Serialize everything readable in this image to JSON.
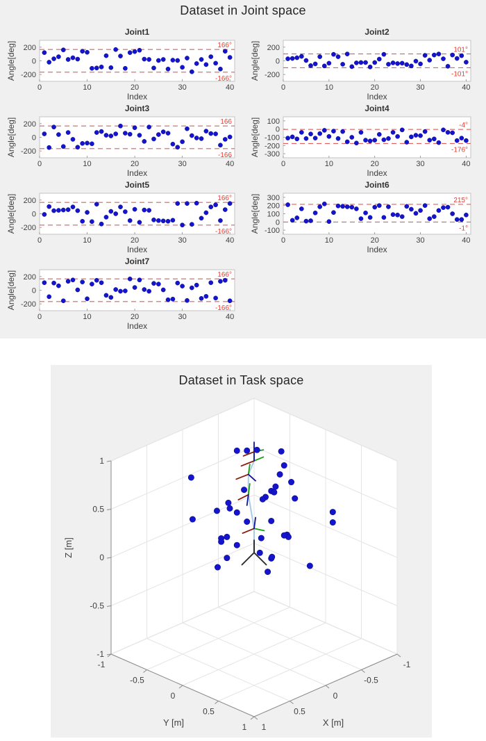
{
  "chart_data": [
    {
      "type": "scatter",
      "title": "Dataset in Joint space",
      "xlabel": "Index",
      "ylabel": "Angle[deg]",
      "xticks": [
        0,
        10,
        20,
        30,
        40
      ],
      "xlim": [
        0,
        41
      ],
      "marker_color": "#1414cc",
      "limit_line_color": "#dd5f5f",
      "limit_text_color": "#ee3a2d",
      "subplots": [
        {
          "title": "Joint1",
          "yticks": [
            200,
            0,
            -200
          ],
          "ylim": [
            -300,
            300
          ],
          "upper_limit": 166,
          "lower_limit": -166,
          "upper_label": "166°",
          "lower_label": "-166°",
          "values": [
            120,
            -20,
            30,
            60,
            160,
            20,
            45,
            25,
            140,
            125,
            -110,
            -105,
            -90,
            75,
            -100,
            165,
            70,
            -110,
            120,
            135,
            155,
            25,
            20,
            -105,
            5,
            20,
            -120,
            10,
            5,
            -95,
            40,
            -160,
            -40,
            20,
            -55,
            60,
            -35,
            -120,
            140,
            50
          ]
        },
        {
          "title": "Joint2",
          "yticks": [
            200,
            0,
            -200
          ],
          "ylim": [
            -300,
            300
          ],
          "upper_limit": 101,
          "lower_limit": -101,
          "upper_label": "101°",
          "lower_label": "-101°",
          "values": [
            30,
            35,
            45,
            65,
            5,
            -70,
            -45,
            60,
            -75,
            -35,
            95,
            60,
            -50,
            100,
            -85,
            -30,
            -25,
            -25,
            -90,
            -25,
            25,
            95,
            -50,
            -30,
            -40,
            -35,
            -55,
            -75,
            -5,
            -45,
            80,
            10,
            85,
            100,
            30,
            -80,
            85,
            35,
            75,
            -20
          ]
        },
        {
          "title": "Joint3",
          "yticks": [
            200,
            0,
            -200
          ],
          "ylim": [
            -300,
            300
          ],
          "upper_limit": 166,
          "lower_limit": -166,
          "upper_label": "166",
          "lower_label": "-166",
          "values": [
            50,
            -150,
            150,
            40,
            -135,
            70,
            -30,
            -145,
            -90,
            -85,
            -95,
            70,
            85,
            30,
            20,
            50,
            165,
            60,
            45,
            140,
            30,
            -60,
            150,
            -25,
            40,
            80,
            60,
            -100,
            -145,
            -65,
            125,
            25,
            -10,
            -20,
            90,
            55,
            50,
            -115,
            -30,
            5
          ]
        },
        {
          "title": "Joint4",
          "yticks": [
            100,
            0,
            -100,
            -200,
            -300
          ],
          "ylim": [
            -350,
            150
          ],
          "upper_limit": -4,
          "lower_limit": -176,
          "upper_label": "-4°",
          "lower_label": "-176°",
          "values": [
            -110,
            -95,
            -120,
            -40,
            -115,
            -60,
            -110,
            -55,
            -15,
            -90,
            -25,
            -115,
            -30,
            -155,
            -100,
            -170,
            -40,
            -135,
            -145,
            -135,
            -65,
            -130,
            -115,
            -40,
            -90,
            -10,
            -160,
            -95,
            -75,
            -80,
            -30,
            -135,
            -120,
            -165,
            -10,
            -40,
            -45,
            -140,
            -110,
            -140
          ]
        },
        {
          "title": "Joint5",
          "yticks": [
            200,
            0,
            -200
          ],
          "ylim": [
            -300,
            300
          ],
          "upper_limit": 166,
          "lower_limit": -166,
          "upper_label": "166°",
          "lower_label": "-166°",
          "values": [
            -10,
            105,
            45,
            50,
            55,
            60,
            100,
            45,
            -110,
            20,
            -115,
            140,
            -150,
            -50,
            35,
            0,
            100,
            30,
            -100,
            65,
            -125,
            55,
            50,
            -90,
            -100,
            -105,
            -110,
            -95,
            150,
            -165,
            150,
            -155,
            155,
            -65,
            15,
            100,
            130,
            -100,
            60,
            150
          ]
        },
        {
          "title": "Joint6",
          "yticks": [
            300,
            200,
            100,
            0,
            -100
          ],
          "ylim": [
            -150,
            350
          ],
          "upper_limit": 215,
          "lower_limit": -1,
          "upper_label": "215°",
          "lower_label": "-1°",
          "values": [
            210,
            20,
            50,
            160,
            10,
            15,
            110,
            185,
            220,
            5,
            115,
            195,
            190,
            185,
            180,
            160,
            40,
            110,
            55,
            180,
            200,
            55,
            185,
            90,
            85,
            65,
            190,
            155,
            105,
            140,
            200,
            40,
            65,
            140,
            175,
            180,
            100,
            30,
            30,
            85
          ]
        },
        {
          "title": "Joint7",
          "yticks": [
            200,
            0,
            -200
          ],
          "ylim": [
            -300,
            300
          ],
          "upper_limit": 166,
          "lower_limit": -166,
          "upper_label": "166°",
          "lower_label": "-166°",
          "values": [
            110,
            -95,
            105,
            65,
            -155,
            130,
            150,
            5,
            120,
            -125,
            90,
            145,
            110,
            -75,
            -105,
            10,
            -15,
            -10,
            165,
            40,
            150,
            10,
            -15,
            100,
            90,
            5,
            -140,
            -130,
            105,
            60,
            -150,
            35,
            75,
            -120,
            -90,
            110,
            -115,
            130,
            145,
            -155
          ]
        }
      ]
    },
    {
      "type": "scatter3d",
      "title": "Dataset in Task space",
      "xlabel": "X [m]",
      "ylabel": "Y [m]",
      "zlabel": "Z [m]",
      "xlim": [
        -1,
        1
      ],
      "ylim": [
        -1,
        1
      ],
      "zlim": [
        -1,
        1
      ],
      "ticks": [
        -1,
        -0.5,
        0,
        0.5,
        1
      ],
      "marker_color": "#1414cc",
      "points": [
        [
          0.22,
          -0.02,
          1.17
        ],
        [
          0.13,
          0.17,
          1.21
        ],
        [
          0.06,
          0.44,
          1.26
        ],
        [
          0.18,
          0.08,
          1.19
        ],
        [
          -0.06,
          0.36,
          1.05
        ],
        [
          -0.18,
          0.18,
          0.86
        ],
        [
          -0.06,
          0.46,
          0.91
        ],
        [
          0.2,
          0.5,
          0.96
        ],
        [
          0.13,
          0.37,
          0.85
        ],
        [
          -0.04,
          0.24,
          0.74
        ],
        [
          0.22,
          0.38,
          0.82
        ],
        [
          0.09,
          0.21,
          0.7
        ],
        [
          0.27,
          0.13,
          0.83
        ],
        [
          0.28,
          -0.08,
          0.63
        ],
        [
          0.42,
          0.08,
          0.67
        ],
        [
          0.41,
          -0.11,
          0.58
        ],
        [
          0.42,
          0.18,
          0.66
        ],
        [
          -0.04,
          0.53,
          0.77
        ],
        [
          -0.35,
          0.75,
          0.6
        ],
        [
          -0.4,
          0.7,
          0.46
        ],
        [
          0.49,
          -0.39,
          0.86
        ],
        [
          0.53,
          -0.33,
          0.46
        ],
        [
          0.25,
          0.15,
          0.5
        ],
        [
          0.13,
          0.37,
          0.54
        ],
        [
          0.34,
          -0.04,
          0.31
        ],
        [
          0.28,
          -0.18,
          0.23
        ],
        [
          0.41,
          -0.05,
          0.28
        ],
        [
          0.37,
          0.13,
          0.29
        ],
        [
          0.15,
          0.25,
          0.33
        ],
        [
          0.07,
          0.53,
          0.43
        ],
        [
          -0.09,
          0.39,
          0.31
        ],
        [
          0.21,
          0.29,
          0.21
        ],
        [
          0.08,
          0.32,
          0.12
        ],
        [
          0.29,
          -0.09,
          0.06
        ],
        [
          0.38,
          -0.13,
          -0.02
        ],
        [
          0.18,
          0.37,
          0.03
        ],
        [
          -0.04,
          0.74,
          0.14
        ],
        [
          0.07,
          0.49,
          0.41
        ],
        [
          0.02,
          0.27,
          0.1
        ]
      ],
      "robot": {
        "base_color": "#2b2b2b",
        "link_color": "#a9cbe8",
        "axis_colors": {
          "x": "#8b1a0e",
          "y": "#17a017",
          "z": "#10109b"
        },
        "base_chain": [
          [
            0,
            0,
            0.05
          ],
          [
            0,
            0,
            0.18
          ]
        ],
        "link_chain": [
          [
            0,
            0,
            0.18
          ],
          [
            0,
            0,
            0.3
          ],
          [
            0.04,
            -0.04,
            0.65
          ],
          [
            0.04,
            -0.04,
            0.86
          ],
          [
            0,
            0,
            1.0
          ],
          [
            0.01,
            0.01,
            1.1
          ]
        ],
        "frames": [
          {
            "o": [
              0,
              0,
              0.05
            ],
            "x": [
              0.17,
              0,
              -0.02
            ],
            "y": [
              0,
              0.17,
              -0.02
            ],
            "z": [
              0,
              0,
              0.18
            ],
            "mono": "#2b2b2b"
          },
          {
            "o": [
              0,
              0,
              0.3
            ],
            "x": [
              0.14,
              -0.02,
              0.29
            ],
            "y": [
              -0.02,
              0.12,
              0.31
            ],
            "z": [
              0,
              0.02,
              0.42
            ]
          },
          {
            "o": [
              0.04,
              -0.04,
              0.65
            ],
            "x": [
              0.16,
              -0.06,
              0.63
            ],
            "y": [
              0.04,
              -0.02,
              0.77
            ],
            "z": [
              0.05,
              -0.05,
              0.54
            ]
          },
          {
            "o": [
              0.04,
              -0.04,
              0.86
            ],
            "x": [
              0.17,
              -0.08,
              0.84
            ],
            "y": [
              0.04,
              -0.02,
              0.97
            ],
            "z": [
              0,
              0.02,
              0.8
            ]
          },
          {
            "o": [
              0,
              0,
              1.0
            ],
            "x": [
              0.14,
              -0.04,
              0.98
            ],
            "y": [
              -0.05,
              0.08,
              1.05
            ],
            "z": [
              0,
              0,
              1.09
            ]
          },
          {
            "o": [
              0.01,
              0.01,
              1.1
            ],
            "x": [
              0.12,
              -0.03,
              1.08
            ],
            "y": [
              -0.04,
              0.09,
              1.13
            ],
            "z": [
              0.01,
              0.01,
              1.2
            ]
          }
        ]
      }
    }
  ]
}
